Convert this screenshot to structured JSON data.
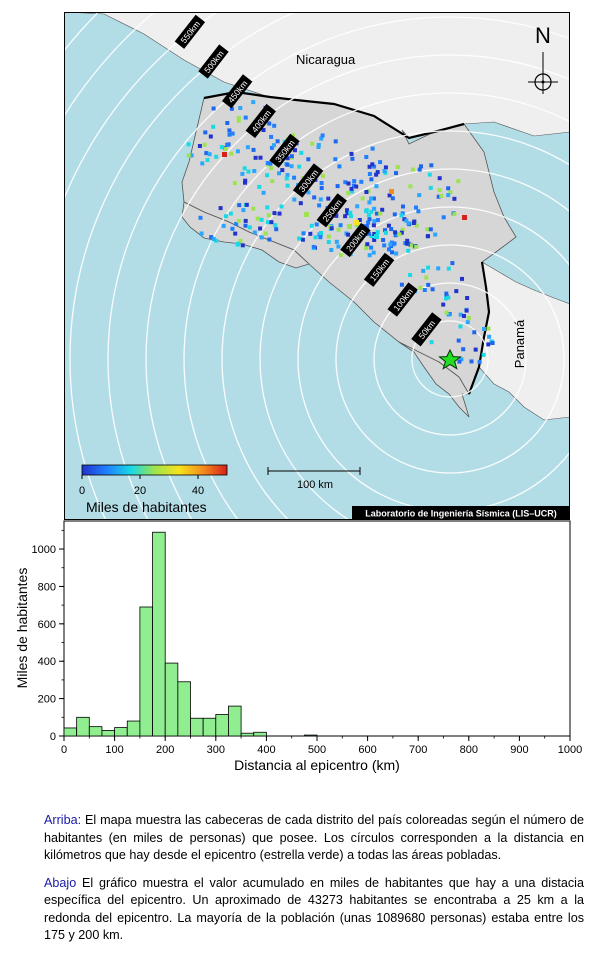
{
  "map": {
    "labels": {
      "nicaragua": "Nicaragua",
      "panama": "Panamá",
      "north": "N"
    },
    "ring_labels": [
      "50km",
      "100km",
      "150km",
      "200km",
      "250km",
      "300km",
      "350km",
      "400km",
      "450km",
      "500km",
      "550km"
    ],
    "colorbar": {
      "ticks": [
        "0",
        "20",
        "40"
      ],
      "title": "Miles de habitantes",
      "range": [
        0,
        50
      ],
      "colors": [
        "#2233cc",
        "#1f7fff",
        "#19d9e5",
        "#9de34f",
        "#f7e21c",
        "#f28a1c",
        "#d6201b"
      ]
    },
    "scale_label": "100 km",
    "credit": "Laboratorio de Ingeniería Sísmica (LIS–UCR)",
    "colors": {
      "ocean": "#b3dde6",
      "land_cr": "#d6d6d6",
      "land_other": "#efefef",
      "epicenter": "#22dd22"
    }
  },
  "chart_data": {
    "type": "bar",
    "xlabel": "Distancia al epicentro (km)",
    "ylabel": "Miles de habitantes",
    "xlim": [
      0,
      1000
    ],
    "ylim": [
      0,
      1150
    ],
    "x_ticks": [
      0,
      100,
      200,
      300,
      400,
      500,
      600,
      700,
      800,
      900,
      1000
    ],
    "y_ticks": [
      0,
      200,
      400,
      600,
      800,
      1000
    ],
    "bin_width": 25,
    "bins_start": [
      0,
      25,
      50,
      75,
      100,
      125,
      150,
      175,
      200,
      225,
      250,
      275,
      300,
      325,
      350,
      375,
      400,
      425,
      450,
      475
    ],
    "values": [
      43,
      100,
      50,
      30,
      45,
      80,
      690,
      1090,
      390,
      290,
      95,
      95,
      115,
      160,
      15,
      20,
      0,
      0,
      0,
      5
    ],
    "bar_color": "#90ee90"
  },
  "caption": {
    "p1_head": "Arriba:",
    "p1_body": " El mapa muestra las cabeceras de cada distrito del país coloreadas según el número de habitantes (en miles de personas) que posee.  Los círculos corresponden a la distancia en kilómetros que hay desde el epicentro (estrella verde) a todas las áreas pobladas.",
    "p2_head": "Abajo",
    "p2_body": " El gráfico muestra el valor acumulado en miles de habitantes que hay a una distacia específica del epicentro.  Un aproximado de 43273 habitantes se encontraba a 25 km a la redonda del epicentro.  La mayoría de la población (unas 1089680 personas) estaba entre los 175 y 200 km."
  }
}
